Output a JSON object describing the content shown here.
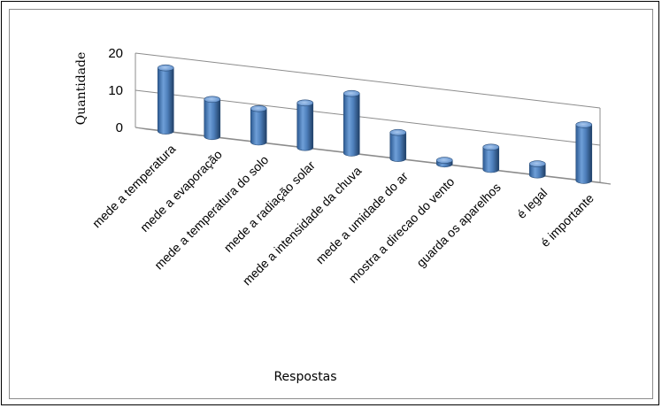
{
  "chart_data": {
    "type": "bar",
    "style": "3d-cylinder",
    "title": "",
    "xlabel": "Respostas",
    "ylabel": "Quantidade",
    "ylim": [
      0,
      20
    ],
    "yticks": [
      "0",
      "10",
      "20"
    ],
    "grid": true,
    "legend": "none",
    "bar_color": "#4f81bd",
    "categories": [
      "mede a temperatura",
      "mede a evaporação",
      "mede a temperatura do solo",
      "mede a radiação solar",
      "mede a intensidade da chuva",
      "mede a umidade do ar",
      "mostra a direcao do vento",
      "guarda os aparelhos",
      "é legal",
      "é importante"
    ],
    "values": [
      17,
      10,
      9,
      12,
      16,
      7,
      1,
      6,
      3,
      15
    ]
  }
}
